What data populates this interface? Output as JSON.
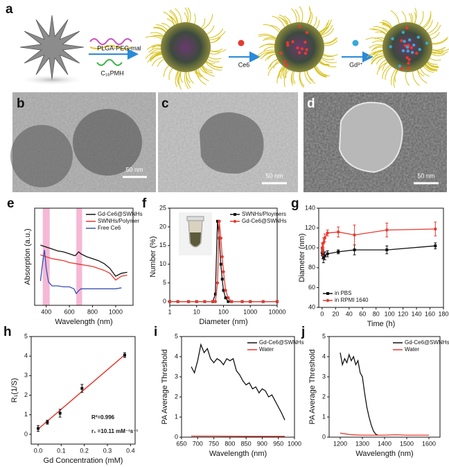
{
  "schematic": {
    "panel_label": "a",
    "texts": [
      "PLGA-PEG-mal",
      "C₁₈PMH",
      "Ce6",
      "Gd³⁺"
    ]
  },
  "micrographs": [
    {
      "panel_label": "b",
      "scale_bar": "50 nm"
    },
    {
      "panel_label": "c",
      "scale_bar": "50 nm"
    },
    {
      "panel_label": "d",
      "scale_bar": "50 nm"
    }
  ],
  "chart_data": [
    {
      "type": "line",
      "label": "e",
      "xlabel": "Wavelength (nm)",
      "ylabel": "Absorption (a.u.)",
      "xlim": [
        300,
        1150
      ],
      "xticks": [
        400,
        600,
        800,
        1000
      ],
      "ylim": [
        0,
        1
      ],
      "legend": "upper right",
      "highlight_bands": [
        [
          370,
          430
        ],
        [
          660,
          710
        ]
      ],
      "band_color": "#f4a6c9",
      "series": [
        {
          "name": "Gd-Ce6@SWNHs",
          "color": "#111111",
          "x": [
            350,
            400,
            450,
            500,
            550,
            600,
            650,
            680,
            700,
            750,
            800,
            850,
            900,
            950,
            1000,
            1050,
            1100
          ],
          "values": [
            0.62,
            0.6,
            0.58,
            0.56,
            0.55,
            0.53,
            0.51,
            0.55,
            0.53,
            0.5,
            0.48,
            0.46,
            0.43,
            0.38,
            0.3,
            0.33,
            0.34
          ]
        },
        {
          "name": "SWNHs/Polymer",
          "color": "#e8392e",
          "x": [
            350,
            400,
            450,
            500,
            550,
            600,
            650,
            700,
            750,
            800,
            850,
            900,
            950,
            1000,
            1050,
            1100
          ],
          "values": [
            0.52,
            0.5,
            0.48,
            0.47,
            0.46,
            0.44,
            0.43,
            0.42,
            0.41,
            0.4,
            0.38,
            0.36,
            0.33,
            0.26,
            0.3,
            0.31
          ]
        },
        {
          "name": "Free Ce6",
          "color": "#3a4fb5",
          "x": [
            350,
            370,
            385,
            400,
            420,
            450,
            500,
            550,
            600,
            640,
            660,
            680,
            700,
            750,
            800,
            900,
            1000,
            1050
          ],
          "values": [
            0.25,
            0.45,
            0.57,
            0.38,
            0.24,
            0.2,
            0.2,
            0.19,
            0.19,
            0.17,
            0.12,
            0.15,
            0.17,
            0.17,
            0.17,
            0.17,
            0.17,
            0.18
          ]
        }
      ]
    },
    {
      "type": "line",
      "label": "f",
      "xlabel": "Diameter (nm)",
      "ylabel": "Number (%)",
      "xscale": "log",
      "xlim": [
        1,
        10000
      ],
      "xticks": [
        1,
        10,
        100,
        1000,
        10000
      ],
      "ylim": [
        -1,
        25
      ],
      "yticks": [
        0,
        5,
        10,
        15,
        20,
        25
      ],
      "legend": "upper right",
      "series": [
        {
          "name": "SWNHs/Ploymers",
          "color": "#111111",
          "marker": "square",
          "x": [
            1,
            2,
            5,
            10,
            20,
            40,
            50,
            60,
            70,
            80,
            90,
            100,
            120,
            150,
            200,
            500,
            1000,
            3000,
            10000
          ],
          "values": [
            0,
            0,
            0,
            0,
            0,
            0,
            2,
            21.5,
            17,
            10,
            6,
            3,
            1,
            0,
            0,
            0,
            0,
            0,
            0
          ]
        },
        {
          "name": "Gd-Ce6@SWNHs",
          "color": "#e8392e",
          "marker": "circle",
          "x": [
            1,
            2,
            5,
            10,
            20,
            40,
            50,
            60,
            70,
            80,
            90,
            100,
            120,
            150,
            200,
            500,
            1000,
            3000,
            10000
          ],
          "values": [
            0,
            0,
            0,
            0,
            0,
            0,
            0,
            5,
            21.5,
            17,
            12,
            8,
            3,
            1,
            0,
            0,
            0,
            0,
            0
          ]
        }
      ]
    },
    {
      "type": "line",
      "label": "g",
      "xlabel": "Time (h)",
      "ylabel": "Diameter (nm)",
      "xlim": [
        -5,
        180
      ],
      "xticks": [
        0,
        20,
        40,
        60,
        80,
        100,
        120,
        140,
        160,
        180
      ],
      "ylim": [
        40,
        140
      ],
      "yticks": [
        40,
        60,
        80,
        100,
        120,
        140
      ],
      "legend": "lower left",
      "series": [
        {
          "name": "in PBS",
          "color": "#111111",
          "marker": "square",
          "x": [
            0,
            1,
            2,
            4,
            8,
            24,
            48,
            96,
            168
          ],
          "values": [
            95,
            93,
            90,
            92,
            94,
            96,
            98,
            98,
            102
          ],
          "errors": [
            3,
            4,
            5,
            4,
            3,
            2,
            5,
            4,
            3
          ]
        },
        {
          "name": "in RPMI 1640",
          "color": "#e8392e",
          "marker": "circle",
          "x": [
            0,
            1,
            2,
            4,
            8,
            24,
            48,
            96,
            168
          ],
          "values": [
            100,
            98,
            105,
            110,
            115,
            116,
            113,
            118,
            119
          ],
          "errors": [
            5,
            6,
            5,
            4,
            3,
            5,
            10,
            7,
            7
          ]
        }
      ]
    },
    {
      "type": "scatter",
      "label": "h",
      "xlabel": "Gd Concentration (mM)",
      "ylabel": "R₁(1/S)",
      "xlim": [
        -0.03,
        0.42
      ],
      "xticks": [
        {
          "value": 0,
          "label": "0.0"
        },
        0.1,
        0.2,
        0.3,
        0.4
      ],
      "ylim": [
        -0.5,
        5
      ],
      "yticks": [
        0,
        1,
        2,
        3,
        4,
        5
      ],
      "annotations": [
        "R²=0.996",
        "r₁ =10.11 mM⁻¹s⁻¹"
      ],
      "fit": {
        "x": [
          0,
          0.375
        ],
        "y": [
          0.27,
          4.06
        ],
        "color": "#e8392e"
      },
      "series": [
        {
          "color": "#111111",
          "marker": "square",
          "line": false,
          "x": [
            0,
            0.04,
            0.095,
            0.19,
            0.375
          ],
          "values": [
            0.3,
            0.62,
            1.08,
            2.35,
            4.05
          ],
          "errors": [
            0.15,
            0.1,
            0.2,
            0.2,
            0.12
          ]
        }
      ]
    },
    {
      "type": "line",
      "label": "i",
      "xlabel": "Wavelength (nm)",
      "ylabel": "PA Average Threshold",
      "xlim": [
        650,
        1000
      ],
      "xticks": [
        650,
        700,
        750,
        800,
        850,
        900,
        950,
        1000
      ],
      "ylim": [
        0,
        5
      ],
      "yticks": [
        0,
        1,
        2,
        3,
        4,
        5
      ],
      "legend": "upper right",
      "series": [
        {
          "name": "Gd-Ce6@SWNHs",
          "color": "#111111",
          "x": [
            680,
            690,
            700,
            710,
            720,
            730,
            740,
            750,
            760,
            770,
            780,
            790,
            800,
            810,
            820,
            830,
            840,
            850,
            860,
            870,
            880,
            890,
            900,
            910,
            920,
            930,
            940,
            950,
            960,
            970
          ],
          "values": [
            3.5,
            3.2,
            3.8,
            4.6,
            4.2,
            4.4,
            3.9,
            3.7,
            3.9,
            3.8,
            3.6,
            3.9,
            3.8,
            3.9,
            3.3,
            3.1,
            2.8,
            2.6,
            2.7,
            2.4,
            2.5,
            2.2,
            2.4,
            2.3,
            2.0,
            2.1,
            1.8,
            1.5,
            1.2,
            0.85
          ]
        },
        {
          "name": "Water",
          "color": "#e8392e",
          "x": [
            680,
            750,
            850,
            970
          ],
          "values": [
            0.05,
            0.05,
            0.04,
            0.04
          ]
        }
      ]
    },
    {
      "type": "line",
      "label": "j",
      "xlabel": "Wavelength (nm)",
      "ylabel": "PA Average Threshold",
      "xlim": [
        1150,
        1650
      ],
      "xticks": [
        1200,
        1300,
        1400,
        1500,
        1600
      ],
      "ylim": [
        0,
        5
      ],
      "yticks": [
        0,
        1,
        2,
        3,
        4,
        5
      ],
      "legend": "upper right",
      "series": [
        {
          "name": "Gd-Ce6@SWNHs",
          "color": "#111111",
          "x": [
            1200,
            1210,
            1220,
            1230,
            1240,
            1250,
            1260,
            1270,
            1280,
            1290,
            1300,
            1310,
            1320,
            1330,
            1340,
            1350,
            1360,
            1370
          ],
          "values": [
            4.2,
            3.6,
            3.9,
            3.7,
            4.1,
            3.8,
            4.0,
            3.6,
            3.8,
            3.2,
            3.0,
            2.2,
            1.5,
            1.0,
            0.6,
            0.3,
            0.15,
            0.1
          ]
        },
        {
          "name": "Water",
          "color": "#e8392e",
          "x": [
            1200,
            1250,
            1300,
            1400,
            1450,
            1500,
            1600
          ],
          "values": [
            0.2,
            0.12,
            0.1,
            0.1,
            0.12,
            0.1,
            0.1
          ]
        }
      ]
    }
  ]
}
